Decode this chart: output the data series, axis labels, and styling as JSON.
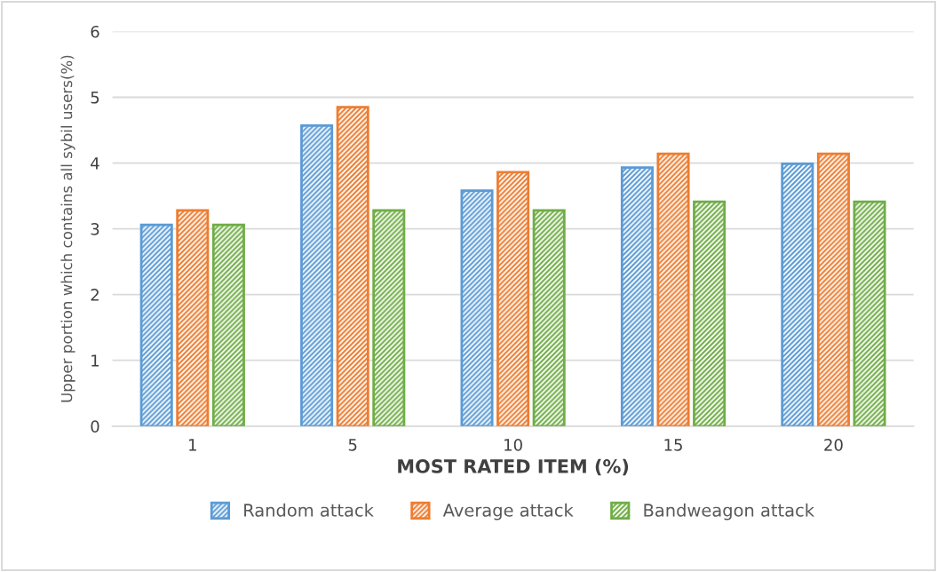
{
  "chart_data": {
    "type": "bar",
    "xlabel": "MOST RATED ITEM (%)",
    "ylabel": "Upper portion which contains all sybil users(%)",
    "categories": [
      "1",
      "5",
      "10",
      "15",
      "20"
    ],
    "series": [
      {
        "name": "Random attack",
        "color": "#5b9bd5",
        "values": [
          3.06,
          4.57,
          3.58,
          3.93,
          3.99
        ]
      },
      {
        "name": "Average attack",
        "color": "#ed7d31",
        "values": [
          3.28,
          4.85,
          3.86,
          4.14,
          4.14
        ]
      },
      {
        "name": "Bandweagon attack",
        "color": "#70ad47",
        "values": [
          3.06,
          3.28,
          3.28,
          3.41,
          3.41
        ]
      }
    ],
    "ylim": [
      0,
      6
    ],
    "yticks": [
      0,
      1,
      2,
      3,
      4,
      5,
      6
    ],
    "grid": "y",
    "legend": "bottom"
  }
}
